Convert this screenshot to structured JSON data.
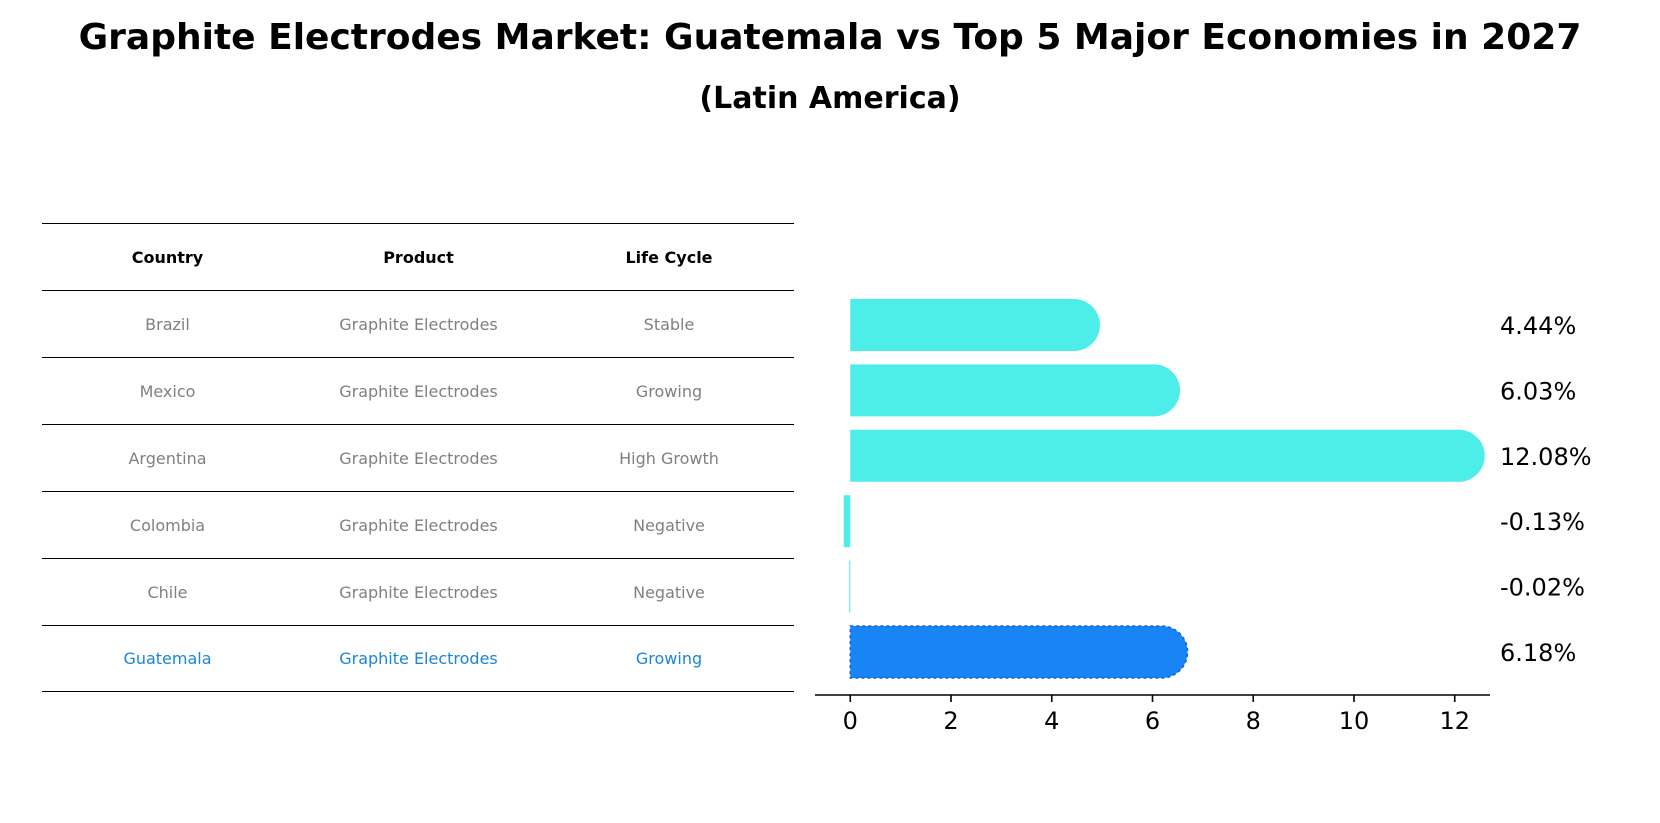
{
  "header": {
    "title": "Graphite Electrodes Market: Guatemala vs Top 5 Major Economies in 2027",
    "subtitle": "(Latin America)"
  },
  "table": {
    "headers": [
      "Country",
      "Product",
      "Life Cycle"
    ],
    "rows": [
      [
        "Brazil",
        "Graphite Electrodes",
        "Stable"
      ],
      [
        "Mexico",
        "Graphite Electrodes",
        "Growing"
      ],
      [
        "Argentina",
        "Graphite Electrodes",
        "High Growth"
      ],
      [
        "Colombia",
        "Graphite Electrodes",
        "Negative"
      ],
      [
        "Chile",
        "Graphite Electrodes",
        "Negative"
      ],
      [
        "Guatemala",
        "Graphite Electrodes",
        "Growing"
      ]
    ],
    "highlight_row": 5
  },
  "chart_data": {
    "type": "bar",
    "orientation": "horizontal",
    "title": "Graphite Electrodes Market: Guatemala vs Top 5 Major Economies in 2027",
    "subtitle": "(Latin America)",
    "categories": [
      "Brazil",
      "Mexico",
      "Argentina",
      "Colombia",
      "Chile",
      "Guatemala"
    ],
    "values": [
      4.44,
      6.03,
      12.08,
      -0.13,
      -0.02,
      6.18
    ],
    "value_labels": [
      "4.44%",
      "6.03%",
      "12.08%",
      "-0.13%",
      "-0.02%",
      "6.18%"
    ],
    "xlim": [
      -0.7,
      12.7
    ],
    "xticks": [
      0,
      2,
      4,
      6,
      8,
      10,
      12
    ],
    "xtick_labels": [
      "0",
      "2",
      "4",
      "6",
      "8",
      "10",
      "12"
    ],
    "xlabel": "",
    "ylabel": "",
    "grid": false,
    "colors": {
      "default": "#4deeea",
      "highlight": "#1984f5"
    }
  }
}
